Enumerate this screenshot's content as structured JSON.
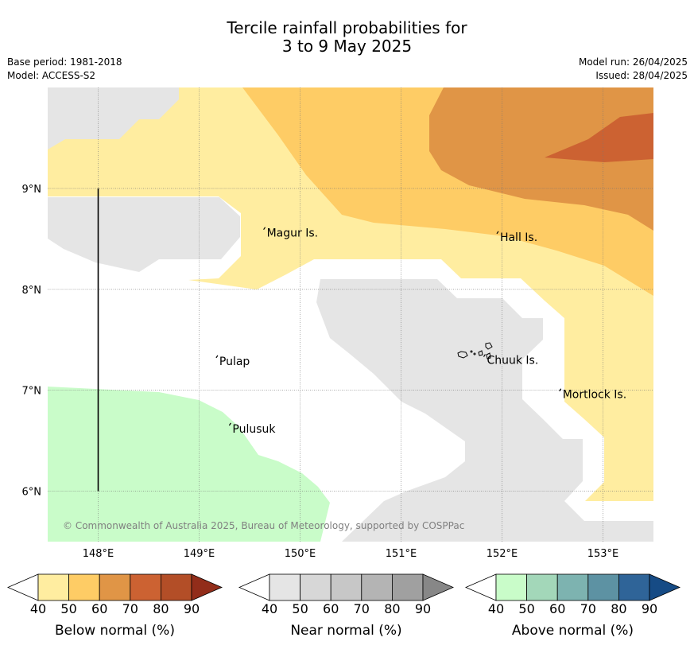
{
  "title": {
    "line1": "Tercile rainfall probabilities for",
    "line2": "3 to 9 May 2025"
  },
  "meta": {
    "base_period": "Base period: 1981-2018",
    "model": "Model: ACCESS-S2",
    "model_run": "Model run: 26/04/2025",
    "issued": "Issued: 28/04/2025"
  },
  "map": {
    "longitude_range": [
      147.5,
      153.5
    ],
    "latitude_range": [
      5.5,
      10.0
    ],
    "x_ticks": [
      {
        "value": 148,
        "label": "148°E"
      },
      {
        "value": 149,
        "label": "149°E"
      },
      {
        "value": 150,
        "label": "150°E"
      },
      {
        "value": 151,
        "label": "151°E"
      },
      {
        "value": 152,
        "label": "152°E"
      },
      {
        "value": 153,
        "label": "153°E"
      }
    ],
    "y_ticks": [
      {
        "value": 9,
        "label": "9°N"
      },
      {
        "value": 8,
        "label": "8°N"
      },
      {
        "value": 7,
        "label": "7°N"
      },
      {
        "value": 6,
        "label": "6°N"
      }
    ],
    "gridlines": true,
    "places": [
      {
        "name": "Magur Is.",
        "lon": 149.67,
        "lat": 8.56
      },
      {
        "name": "Hall Is.",
        "lon": 151.98,
        "lat": 8.52
      },
      {
        "name": "Pulap",
        "lon": 149.2,
        "lat": 7.29
      },
      {
        "name": "Chuuk Is.",
        "lon": 151.85,
        "lat": 7.3
      },
      {
        "name": "Mortlock Is.",
        "lon": 152.6,
        "lat": 6.96
      },
      {
        "name": "Pulusuk",
        "lon": 149.33,
        "lat": 6.62
      }
    ],
    "vertical_line": {
      "lon": 148.0,
      "lat_from": 6.0,
      "lat_to": 9.0
    },
    "copyright": "© Commonwealth of Australia 2025, Bureau of Meteorology, supported by COSPPac"
  },
  "legends": [
    {
      "label": "Below normal (%)",
      "ticks": [
        "40",
        "50",
        "60",
        "70",
        "80",
        "90"
      ],
      "colors": [
        "#ffeda0",
        "#fecc65",
        "#e09546",
        "#cc6232",
        "#b34e27",
        "#922d1a"
      ]
    },
    {
      "label": "Near normal (%)",
      "ticks": [
        "40",
        "50",
        "60",
        "70",
        "80",
        "90"
      ],
      "colors": [
        "#e5e5e5",
        "#d7d7d7",
        "#c7c7c7",
        "#b4b4b4",
        "#a0a0a0",
        "#878787"
      ]
    },
    {
      "label": "Above normal (%)",
      "ticks": [
        "40",
        "50",
        "60",
        "70",
        "80",
        "90"
      ],
      "colors": [
        "#c9fcc9",
        "#a3d7b9",
        "#7db3b0",
        "#5d92a3",
        "#2f6498",
        "#164b85"
      ]
    }
  ]
}
